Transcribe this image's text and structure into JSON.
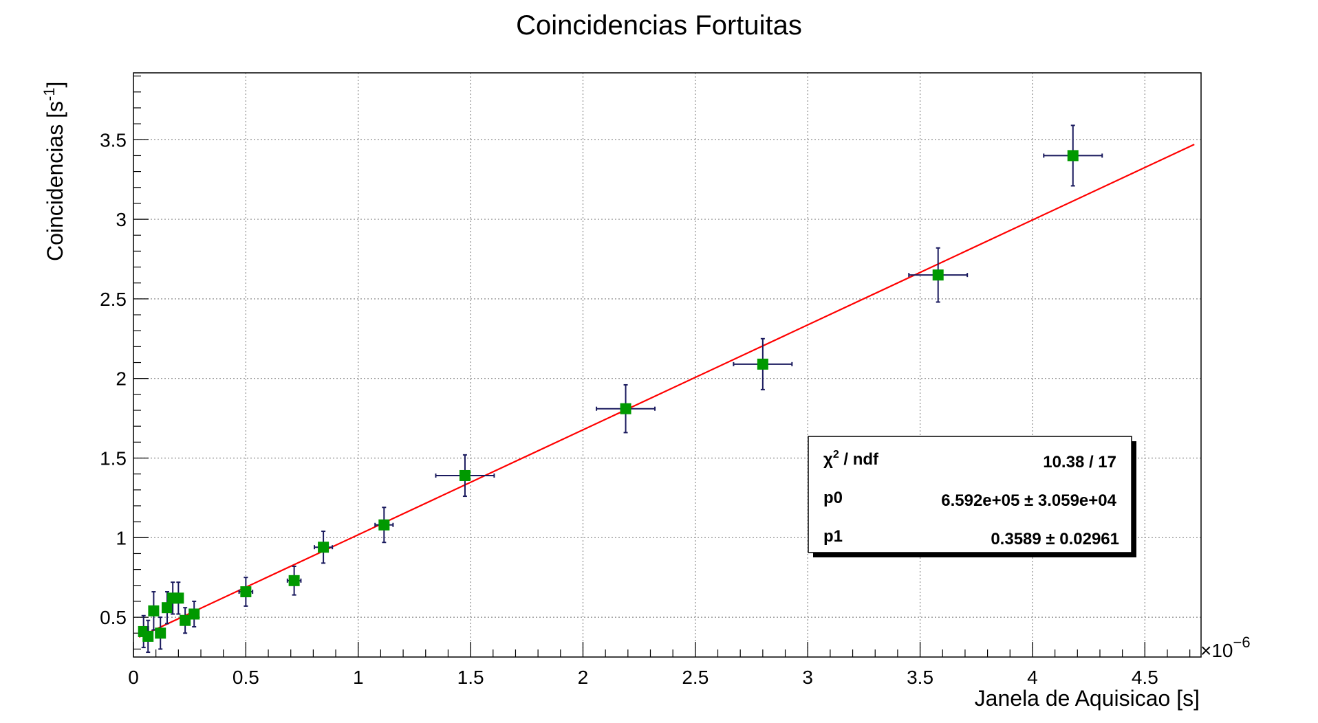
{
  "chart_data": {
    "type": "scatter",
    "title": "Coincidencias Fortuitas",
    "xlabel": "Janela de Aquisicao [s]",
    "ylabel": "Coincidencias [s",
    "ylabel_sup": "-1",
    "ylabel_close": "]",
    "x_exponent_label": "×10",
    "x_exponent_power": "−6",
    "xlim": [
      0,
      4.75
    ],
    "ylim": [
      0.25,
      3.92
    ],
    "x_ticks": [
      0,
      0.5,
      1,
      1.5,
      2,
      2.5,
      3,
      3.5,
      4,
      4.5
    ],
    "x_tick_labels": [
      "0",
      "0.5",
      "1",
      "1.5",
      "2",
      "2.5",
      "3",
      "3.5",
      "4",
      "4.5"
    ],
    "y_ticks": [
      0.5,
      1,
      1.5,
      2,
      2.5,
      3,
      3.5
    ],
    "y_tick_labels": [
      "0.5",
      "1",
      "1.5",
      "2",
      "2.5",
      "3",
      "3.5"
    ],
    "grid": true,
    "marker_color": "#009900",
    "errorbar_color": "#1a1a5e",
    "fit_color": "#ff0000",
    "points": [
      {
        "x": 0.045,
        "y": 0.41,
        "xerr": 0.0,
        "yerr": 0.1
      },
      {
        "x": 0.065,
        "y": 0.38,
        "xerr": 0.0,
        "yerr": 0.1
      },
      {
        "x": 0.09,
        "y": 0.54,
        "xerr": 0.0,
        "yerr": 0.12
      },
      {
        "x": 0.12,
        "y": 0.4,
        "xerr": 0.0,
        "yerr": 0.1
      },
      {
        "x": 0.15,
        "y": 0.56,
        "xerr": 0.0,
        "yerr": 0.1
      },
      {
        "x": 0.175,
        "y": 0.62,
        "xerr": 0.0,
        "yerr": 0.1
      },
      {
        "x": 0.2,
        "y": 0.62,
        "xerr": 0.0,
        "yerr": 0.1
      },
      {
        "x": 0.23,
        "y": 0.48,
        "xerr": 0.0,
        "yerr": 0.08
      },
      {
        "x": 0.27,
        "y": 0.52,
        "xerr": 0.0,
        "yerr": 0.08
      },
      {
        "x": 0.5,
        "y": 0.66,
        "xerr": 0.03,
        "yerr": 0.09
      },
      {
        "x": 0.715,
        "y": 0.73,
        "xerr": 0.03,
        "yerr": 0.09
      },
      {
        "x": 0.845,
        "y": 0.94,
        "xerr": 0.04,
        "yerr": 0.1
      },
      {
        "x": 1.115,
        "y": 1.08,
        "xerr": 0.04,
        "yerr": 0.11
      },
      {
        "x": 1.475,
        "y": 1.39,
        "xerr": 0.13,
        "yerr": 0.13
      },
      {
        "x": 2.19,
        "y": 1.81,
        "xerr": 0.13,
        "yerr": 0.15
      },
      {
        "x": 2.8,
        "y": 2.09,
        "xerr": 0.13,
        "yerr": 0.16
      },
      {
        "x": 3.58,
        "y": 2.65,
        "xerr": 0.13,
        "yerr": 0.17
      },
      {
        "x": 4.18,
        "y": 3.4,
        "xerr": 0.13,
        "yerr": 0.19
      }
    ],
    "fit": {
      "p0": 659200,
      "p1": 0.3589,
      "x_range": [
        0.025,
        4.72
      ],
      "x_scale": 1e-06
    }
  },
  "stats_box": {
    "chi2_label_symbol": "χ",
    "chi2_label_sup": "2",
    "chi2_label_rest": " / ndf",
    "chi2_value": "10.38 / 17",
    "p0_label": "p0",
    "p0_value": "6.592e+05  ± 3.059e+04",
    "p1_label": "p1",
    "p1_value": "0.3589  ± 0.02961"
  }
}
